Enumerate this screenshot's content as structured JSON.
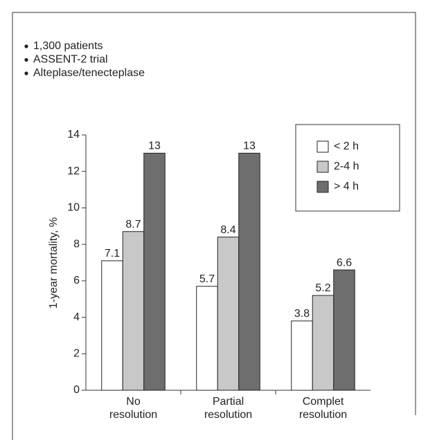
{
  "notes": [
    "1,300 patients",
    "ASSENT-2 trial",
    "Alteplase/tenecteplase"
  ],
  "chart_data": {
    "type": "bar",
    "y_label": "1-year mortality, %",
    "categories": [
      "No resolution",
      "Partial resolution",
      "Complet resolution"
    ],
    "series": [
      {
        "name": "< 2 h",
        "color": "#ffffff",
        "values": [
          7.1,
          5.7,
          3.8
        ]
      },
      {
        "name": "2-4 h",
        "color": "#c8c8c8",
        "values": [
          8.7,
          8.4,
          5.2
        ]
      },
      {
        "name": "> 4 h",
        "color": "#6e6e6e",
        "values": [
          13,
          13,
          6.6
        ]
      }
    ],
    "ylim": [
      0,
      14
    ],
    "yticks": [
      0,
      2,
      4,
      6,
      8,
      10,
      12,
      14
    ],
    "legend": "upper right"
  }
}
